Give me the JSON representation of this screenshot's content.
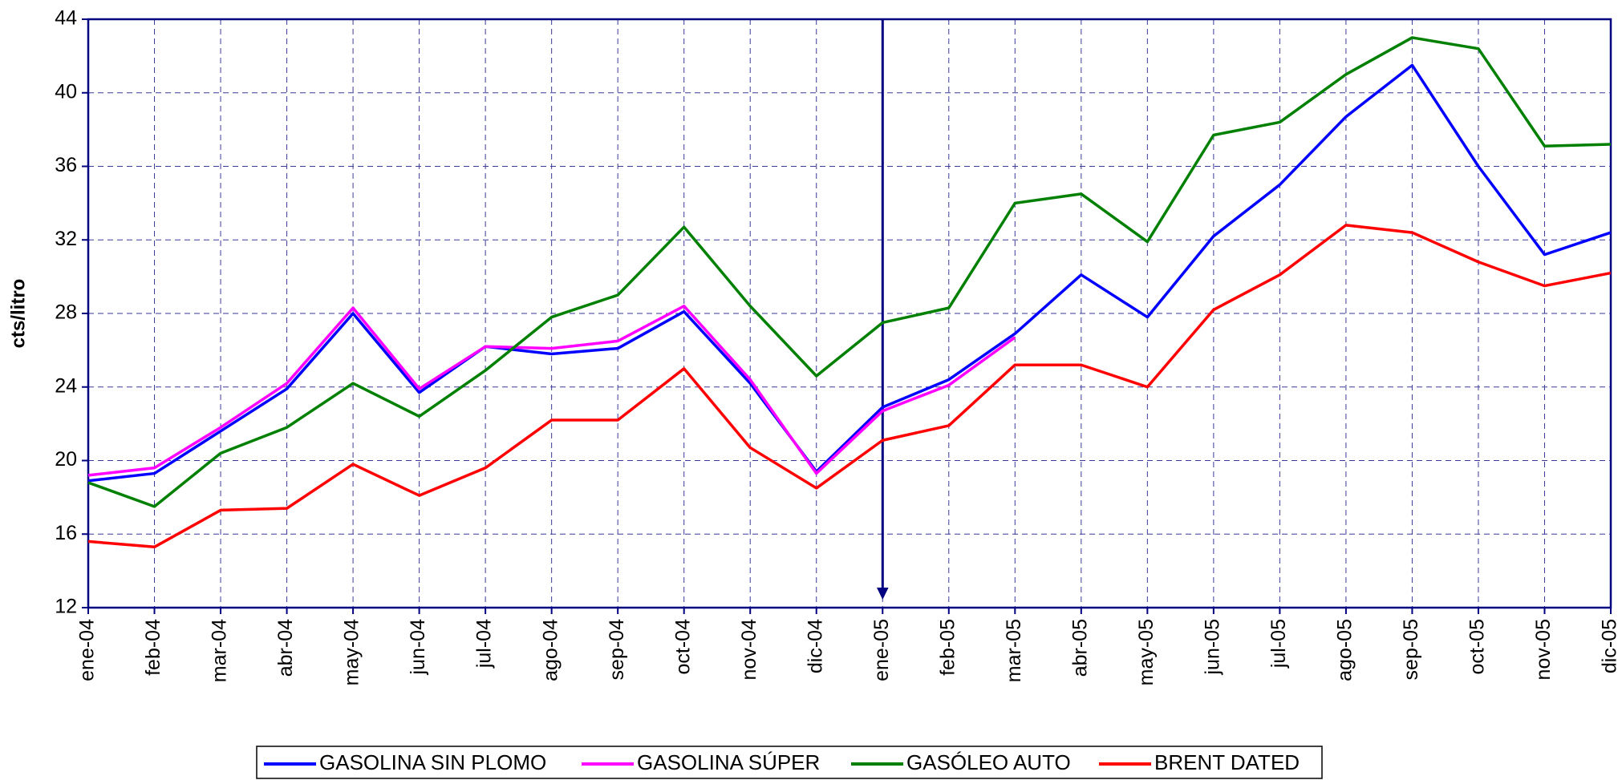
{
  "chart_data": {
    "type": "line",
    "y_label": "cts/litro",
    "categories": [
      "ene-04",
      "feb-04",
      "mar-04",
      "abr-04",
      "may-04",
      "jun-04",
      "jul-04",
      "ago-04",
      "sep-04",
      "oct-04",
      "nov-04",
      "dic-04",
      "ene-05",
      "feb-05",
      "mar-05",
      "abr-05",
      "may-05",
      "jun-05",
      "jul-05",
      "ago-05",
      "sep-05",
      "oct-05",
      "nov-05",
      "dic-05"
    ],
    "series": [
      {
        "name": "GASOLINA SIN PLOMO",
        "color": "#0000ff",
        "values": [
          18.9,
          19.3,
          21.6,
          23.9,
          28.0,
          23.7,
          26.2,
          25.8,
          26.1,
          28.1,
          24.2,
          19.4,
          22.9,
          24.4,
          26.9,
          30.1,
          27.8,
          32.2,
          35.0,
          38.7,
          41.5,
          36.0,
          31.2,
          32.4
        ]
      },
      {
        "name": "GASOLINA SÚPER",
        "color": "#ff00ff",
        "values": [
          19.2,
          19.6,
          21.8,
          24.2,
          28.3,
          23.9,
          26.2,
          26.1,
          26.5,
          28.4,
          24.4,
          19.3,
          22.7,
          24.1,
          26.7,
          null,
          null,
          null,
          null,
          null,
          null,
          null,
          null,
          null
        ]
      },
      {
        "name": "GASÓLEO AUTO",
        "color": "#008000",
        "values": [
          18.8,
          17.5,
          20.4,
          21.8,
          24.2,
          22.4,
          24.9,
          27.8,
          29.0,
          32.7,
          28.4,
          24.6,
          27.5,
          28.3,
          34.0,
          34.5,
          31.9,
          37.7,
          38.4,
          41.0,
          43.0,
          42.4,
          37.1,
          37.2
        ]
      },
      {
        "name": "BRENT DATED",
        "color": "#ff0000",
        "values": [
          15.6,
          15.3,
          17.3,
          17.4,
          19.8,
          18.1,
          19.6,
          22.2,
          22.2,
          25.0,
          20.7,
          18.5,
          21.1,
          21.9,
          25.2,
          25.2,
          24.0,
          28.2,
          30.1,
          32.8,
          32.4,
          30.8,
          29.5,
          30.2
        ]
      }
    ],
    "ylim": [
      12,
      44
    ],
    "yticks": [
      12,
      16,
      20,
      24,
      28,
      32,
      36,
      40,
      44
    ],
    "grid": true,
    "legend": "bottom"
  }
}
